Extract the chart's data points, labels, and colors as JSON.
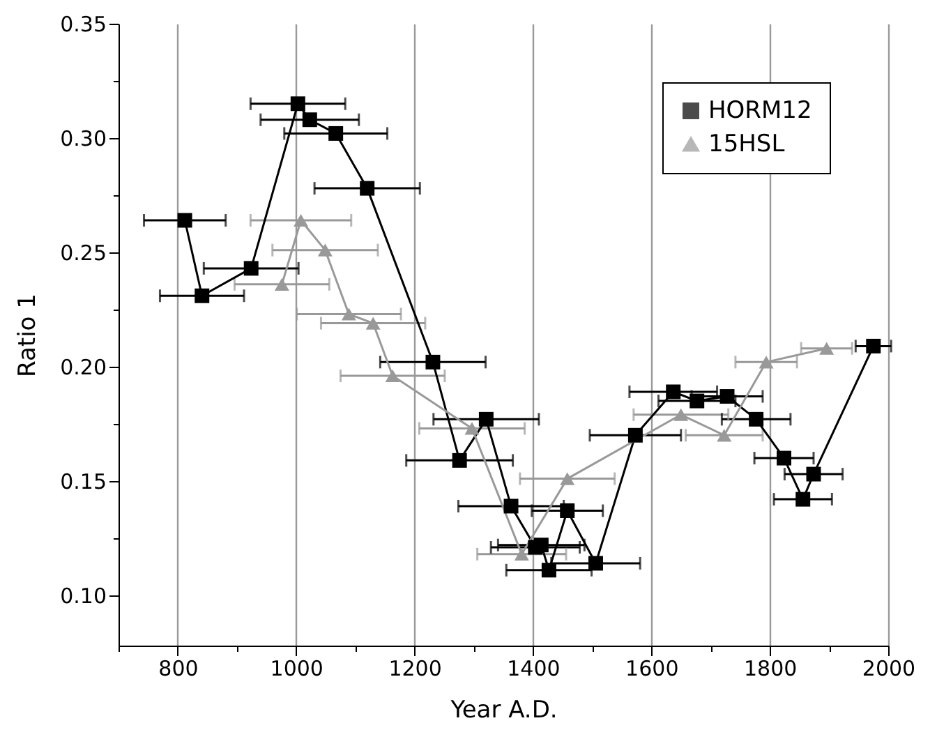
{
  "chart_data": {
    "type": "line",
    "xlabel": "Year A.D.",
    "ylabel": "Ratio 1",
    "xlim": [
      700,
      2000
    ],
    "ylim": [
      0.078,
      0.35
    ],
    "xticks": [
      {
        "value": 700,
        "label": null
      },
      800,
      {
        "value": 900,
        "label": null
      },
      1000,
      {
        "value": 1100,
        "label": null
      },
      1200,
      {
        "value": 1300,
        "label": null
      },
      1400,
      {
        "value": 1500,
        "label": null
      },
      1600,
      {
        "value": 1700,
        "label": null
      },
      1800,
      {
        "value": 1900,
        "label": null
      },
      2000
    ],
    "yticks": [
      {
        "value": 0.1,
        "label": "0.10"
      },
      {
        "value": 0.125,
        "label": null
      },
      {
        "value": 0.15,
        "label": "0.15"
      },
      {
        "value": 0.175,
        "label": null
      },
      {
        "value": 0.2,
        "label": "0.20"
      },
      {
        "value": 0.225,
        "label": null
      },
      {
        "value": 0.25,
        "label": "0.25"
      },
      {
        "value": 0.275,
        "label": null
      },
      {
        "value": 0.3,
        "label": "0.30"
      },
      {
        "value": 0.325,
        "label": null
      },
      {
        "value": 0.35,
        "label": "0.35"
      }
    ],
    "grid": "x",
    "legend": "top right",
    "series": [
      {
        "name": "HORM12",
        "color": "#000000",
        "marker": "square",
        "x": [
          812,
          841,
          924,
          1003,
          1023,
          1067,
          1120,
          1231,
          1276,
          1321,
          1363,
          1404,
          1414,
          1427,
          1458,
          1506,
          1573,
          1637,
          1677,
          1728,
          1777,
          1824,
          1856,
          1874,
          1975
        ],
        "values": [
          0.264,
          0.231,
          0.243,
          0.315,
          0.308,
          0.302,
          0.278,
          0.202,
          0.159,
          0.177,
          0.139,
          0.121,
          0.122,
          0.111,
          0.137,
          0.114,
          0.17,
          0.189,
          0.185,
          0.187,
          0.177,
          0.16,
          0.142,
          0.153,
          0.209
        ],
        "xerrors": [
          69,
          71,
          80,
          80,
          83,
          87,
          89,
          89,
          90,
          89,
          89,
          75,
          73,
          72,
          60,
          75,
          77,
          74,
          65,
          60,
          58,
          50,
          49,
          49,
          30
        ]
      },
      {
        "name": "15HSL",
        "color": "#999999",
        "marker": "triangle",
        "x": [
          976,
          1008,
          1049,
          1089,
          1130,
          1163,
          1297,
          1381,
          1458,
          1650,
          1723,
          1794,
          1896
        ],
        "values": [
          0.236,
          0.264,
          0.251,
          0.223,
          0.219,
          0.196,
          0.173,
          0.118,
          0.151,
          0.179,
          0.17,
          0.202,
          0.208
        ],
        "xerrors": [
          80,
          85,
          89,
          88,
          88,
          88,
          89,
          75,
          80,
          80,
          65,
          52,
          43
        ]
      }
    ]
  }
}
